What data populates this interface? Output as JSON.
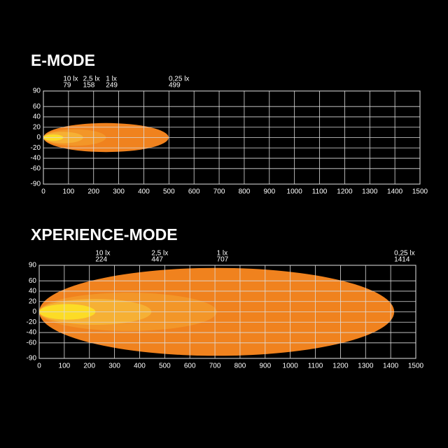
{
  "chart_data": [
    {
      "type": "beam",
      "title": "E-MODE",
      "xlim": [
        0,
        1500
      ],
      "xticks": [
        0,
        100,
        200,
        300,
        400,
        500,
        600,
        700,
        800,
        900,
        1000,
        1100,
        1200,
        1300,
        1400,
        1500
      ],
      "ylim": [
        -90,
        90
      ],
      "yticks": [
        90,
        60,
        40,
        20,
        0,
        -20,
        -40,
        -60,
        -90
      ],
      "grid": true,
      "zones": [
        {
          "label": "0,25 lx",
          "distance": 499,
          "half_height": 28,
          "color": "#f0821e"
        },
        {
          "label": "1 lx",
          "distance": 249,
          "half_height": 16,
          "color": "#f39628"
        },
        {
          "label": "2,5 lx",
          "distance": 158,
          "half_height": 11,
          "color": "#f6b034"
        },
        {
          "label": "10 lx",
          "distance": 79,
          "half_height": 6,
          "color": "#fcdc26"
        }
      ]
    },
    {
      "type": "beam",
      "title": "XPERIENCE-MODE",
      "xlim": [
        0,
        1500
      ],
      "xticks": [
        0,
        100,
        200,
        300,
        400,
        500,
        600,
        700,
        800,
        900,
        1000,
        1100,
        1200,
        1300,
        1400,
        1500
      ],
      "ylim": [
        -90,
        90
      ],
      "yticks": [
        90,
        60,
        40,
        20,
        0,
        -20,
        -40,
        -60,
        -90
      ],
      "grid": true,
      "zones": [
        {
          "label": "0,25 lx",
          "distance": 1414,
          "half_height": 85,
          "color": "#f0821e"
        },
        {
          "label": "1 lx",
          "distance": 707,
          "half_height": 37,
          "color": "#f39628"
        },
        {
          "label": "2,5 lx",
          "distance": 447,
          "half_height": 25,
          "color": "#f6b034"
        },
        {
          "label": "10 lx",
          "distance": 224,
          "half_height": 15,
          "color": "#fcdc26"
        }
      ]
    }
  ]
}
